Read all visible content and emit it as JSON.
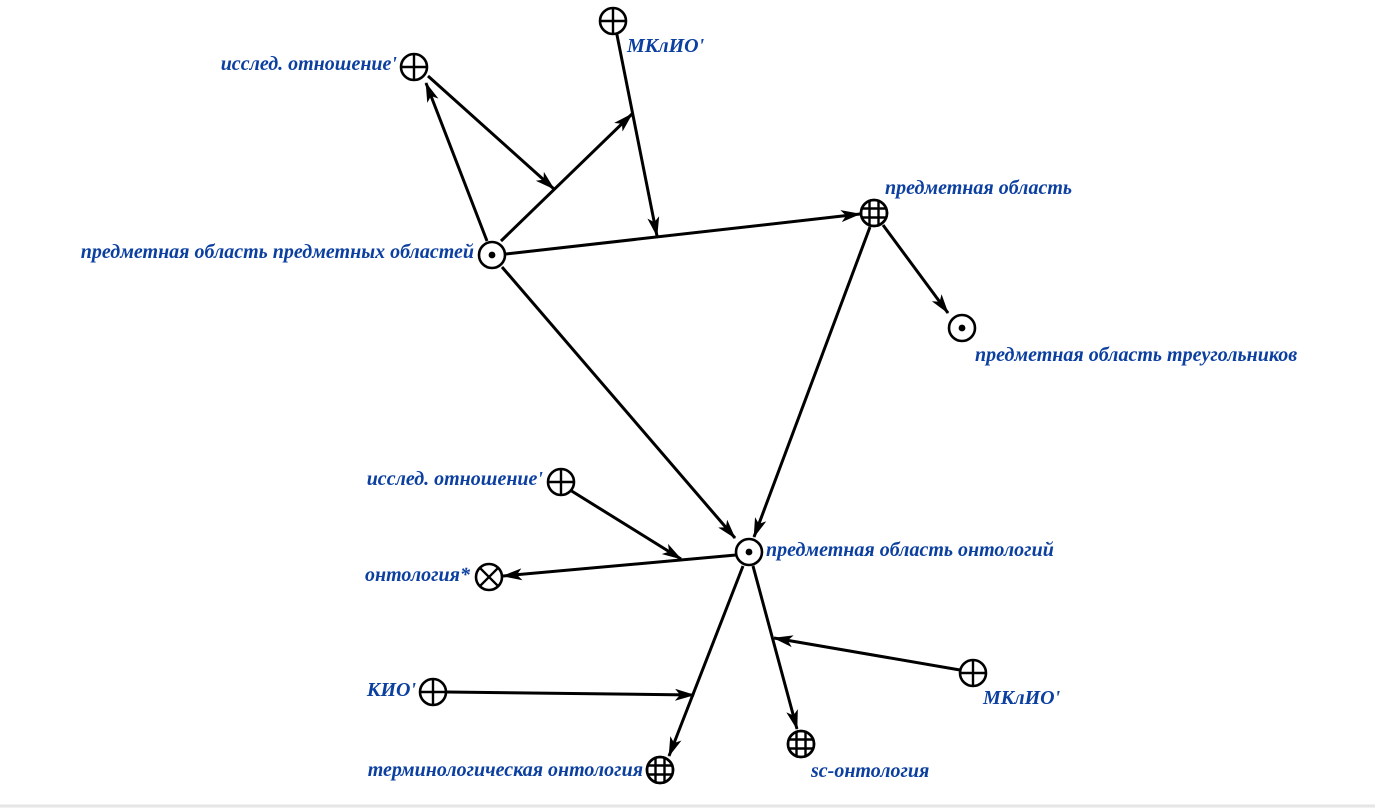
{
  "colors": {
    "label": "#0b3fa0",
    "stroke": "#000000",
    "background": "#ffffff"
  },
  "nodes": {
    "pd_pd": {
      "label": "предметная область предметных областей",
      "icon": "point-circle-icon"
    },
    "issled_top": {
      "label": "исслед. отношение'",
      "icon": "plus-circle-icon"
    },
    "mklio_top": {
      "label": "МКлИО'",
      "icon": "plus-circle-icon"
    },
    "pd": {
      "label": "предметная область",
      "icon": "grid-circle-icon"
    },
    "pd_tri": {
      "label": "предметная область треугольников",
      "icon": "point-circle-icon"
    },
    "pd_ont": {
      "label": "предметная область онтологий",
      "icon": "point-circle-icon"
    },
    "issled_mid": {
      "label": "исслед. отношение'",
      "icon": "plus-circle-icon"
    },
    "ontology": {
      "label": "онтология*",
      "icon": "cross-circle-icon"
    },
    "kio": {
      "label": "КИО'",
      "icon": "plus-circle-icon"
    },
    "term_ont": {
      "label": "терминологическая онтология",
      "icon": "grid-circle-icon"
    },
    "sc_ont": {
      "label": "sc-онтология",
      "icon": "grid-circle-icon"
    },
    "mklio_bottom": {
      "label": "МКлИО'",
      "icon": "plus-circle-icon"
    }
  }
}
